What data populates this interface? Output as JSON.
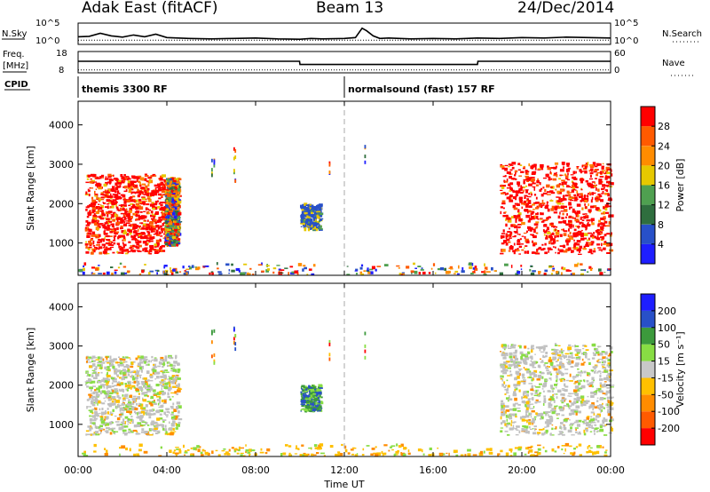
{
  "header": {
    "station": "Adak East (fitACF)",
    "beam": "Beam 13",
    "date": "24/Dec/2014"
  },
  "colors": {
    "power_scale": [
      "#1e1eff",
      "#2850c8",
      "#2f6e3e",
      "#4fa050",
      "#e6c800",
      "#ff8c00",
      "#ff5a00",
      "#ff0000"
    ],
    "velocity_scale": [
      "#ff0000",
      "#ff5a00",
      "#ff8c00",
      "#ffc000",
      "#c8c8c8",
      "#88dd44",
      "#3c9a3c",
      "#2850c8",
      "#1e1eff"
    ],
    "ground_scatter": "#c0c0c0",
    "cpid_divider": "#aaaaaa"
  },
  "chart_data": [
    {
      "type": "line",
      "title": "",
      "ylabel": "N.Sky",
      "y2label": "N.Search",
      "yticks": [
        "10^5",
        "10^0"
      ],
      "y2ticks": [
        "10^5",
        "10^0"
      ],
      "series": [
        {
          "name": "N.Sky",
          "x": [
            0,
            0.5,
            1,
            1.5,
            2,
            2.5,
            3,
            3.5,
            4,
            4.5,
            5,
            6,
            7,
            8,
            9,
            10,
            10.5,
            11,
            12,
            12.5,
            12.8,
            13,
            13.3,
            13.6,
            14,
            15,
            16,
            17,
            18,
            19,
            20,
            21,
            22,
            23,
            24
          ],
          "values": [
            1.8,
            1.9,
            2.6,
            2.0,
            1.7,
            2.2,
            1.8,
            2.4,
            1.6,
            1.5,
            1.4,
            1.3,
            1.4,
            1.5,
            1.3,
            1.2,
            1.4,
            1.3,
            1.4,
            1.6,
            3.8,
            3.2,
            2.0,
            1.4,
            1.5,
            1.3,
            1.4,
            1.3,
            1.5,
            1.4,
            1.6,
            1.5,
            1.7,
            1.6,
            1.5
          ]
        }
      ],
      "ylim": [
        0,
        5
      ]
    },
    {
      "type": "line",
      "title": "",
      "ylabel": "Freq. [MHz]",
      "y2label": "Nave",
      "yticks": [
        18,
        8
      ],
      "y2ticks": [
        60,
        0
      ],
      "series": [
        {
          "name": "Freq",
          "x": [
            0,
            9.98,
            10.0,
            18.0,
            18.02,
            24
          ],
          "values": [
            13.4,
            13.4,
            11.9,
            11.9,
            13.4,
            13.4
          ]
        },
        {
          "name": "Nave",
          "x": [
            0,
            10,
            12,
            18,
            24
          ],
          "values": [
            8,
            8,
            8,
            8,
            8
          ]
        }
      ],
      "ylim": [
        8,
        18
      ],
      "y2lim": [
        0,
        60
      ]
    },
    {
      "type": "table",
      "label": "CPID",
      "segments": [
        {
          "start": 0,
          "end": 12,
          "name": "themis 3300 RF"
        },
        {
          "start": 12,
          "end": 24,
          "name": "normalsound (fast) 157 RF"
        }
      ]
    },
    {
      "type": "heatmap",
      "title": "",
      "parameter": "Power",
      "ylabel": "Slant Range [km]",
      "ylim": [
        180,
        4600
      ],
      "yticks": [
        1000,
        2000,
        3000,
        4000
      ],
      "colorbar": {
        "label": "Power [dB]",
        "range": [
          0,
          32
        ],
        "ticks": [
          4,
          8,
          12,
          16,
          20,
          24,
          28
        ]
      },
      "regions": [
        {
          "t": [
            0.3,
            3.9
          ],
          "range": [
            700,
            2700
          ],
          "level": "high"
        },
        {
          "t": [
            3.9,
            4.5
          ],
          "range": [
            900,
            2600
          ],
          "level": "mixed"
        },
        {
          "t": [
            10.0,
            10.9
          ],
          "range": [
            1300,
            1950
          ],
          "level": "low"
        },
        {
          "t": [
            19.0,
            24.0
          ],
          "range": [
            700,
            3000
          ],
          "level": "high"
        },
        {
          "t": [
            0.0,
            24.0
          ],
          "range": [
            180,
            450
          ],
          "level": "low-mixed"
        }
      ]
    },
    {
      "type": "heatmap",
      "title": "",
      "parameter": "Velocity",
      "ylabel": "Slant Range [km]",
      "ylim": [
        180,
        4600
      ],
      "yticks": [
        1000,
        2000,
        3000,
        4000
      ],
      "colorbar": {
        "label": "Velocity [m s⁻¹]",
        "range": [
          -250,
          250
        ],
        "ticks": [
          -200,
          -100,
          -50,
          -15,
          15,
          50,
          100,
          200
        ]
      },
      "regions": [
        {
          "t": [
            0.3,
            4.5
          ],
          "range": [
            700,
            2700
          ],
          "level": "ground-scatter-mostly"
        },
        {
          "t": [
            10.0,
            10.9
          ],
          "range": [
            1300,
            1950
          ],
          "level": "mixed"
        },
        {
          "t": [
            19.0,
            24.0
          ],
          "range": [
            700,
            3000
          ],
          "level": "ground-scatter-mostly"
        },
        {
          "t": [
            0.0,
            24.0
          ],
          "range": [
            180,
            450
          ],
          "level": "negative-mostly"
        }
      ]
    }
  ],
  "xaxis": {
    "label": "Time UT",
    "ticks": [
      "00:00",
      "04:00",
      "08:00",
      "12:00",
      "16:00",
      "20:00",
      "00:00"
    ],
    "tick_hours": [
      0,
      4,
      8,
      12,
      16,
      20,
      24
    ]
  },
  "right_labels": {
    "nsearch": "N.Search",
    "nave": "Nave",
    "cpid": "CPID"
  }
}
